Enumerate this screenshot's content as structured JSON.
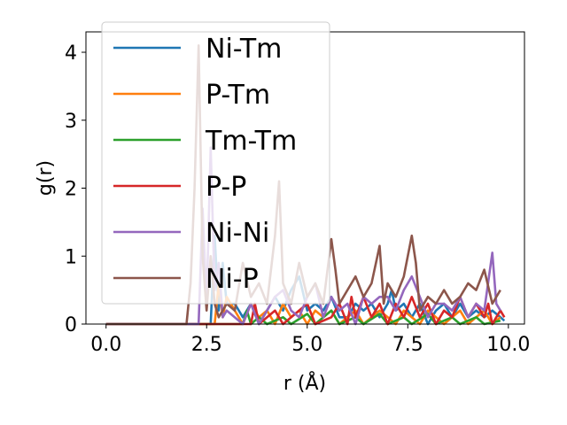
{
  "chart_data": {
    "type": "line",
    "title": "",
    "xlabel": "r (Å)",
    "ylabel": "g(r)",
    "xlim": [
      -0.5,
      10.4
    ],
    "ylim": [
      0,
      4.3
    ],
    "xticks": [
      {
        "value": 0.0,
        "label": "0.0"
      },
      {
        "value": 2.5,
        "label": "2.5"
      },
      {
        "value": 5.0,
        "label": "5.0"
      },
      {
        "value": 7.5,
        "label": "7.5"
      },
      {
        "value": 10.0,
        "label": "10.0"
      }
    ],
    "yticks": [
      {
        "value": 0,
        "label": "0"
      },
      {
        "value": 1,
        "label": "1"
      },
      {
        "value": 2,
        "label": "2"
      },
      {
        "value": 3,
        "label": "3"
      },
      {
        "value": 4,
        "label": "4"
      }
    ],
    "grid": false,
    "legend_position": "upper-left",
    "series": [
      {
        "name": "Ni-Tm",
        "color": "#1f77b4",
        "points": [
          [
            0,
            0
          ],
          [
            2.6,
            0
          ],
          [
            2.7,
            1.3
          ],
          [
            2.8,
            0.2
          ],
          [
            2.9,
            0.9
          ],
          [
            3.0,
            0.3
          ],
          [
            3.2,
            0.3
          ],
          [
            3.4,
            0.1
          ],
          [
            3.6,
            0.3
          ],
          [
            3.8,
            0.0
          ],
          [
            4.0,
            0.2
          ],
          [
            4.2,
            0.4
          ],
          [
            4.4,
            0.2
          ],
          [
            4.6,
            0.5
          ],
          [
            4.8,
            0.7
          ],
          [
            5.0,
            0.2
          ],
          [
            5.2,
            0.3
          ],
          [
            5.4,
            0.2
          ],
          [
            5.6,
            0.4
          ],
          [
            5.8,
            0.1
          ],
          [
            6.0,
            0.1
          ],
          [
            6.2,
            0.3
          ],
          [
            6.4,
            0.2
          ],
          [
            6.6,
            0.3
          ],
          [
            6.8,
            0.1
          ],
          [
            7.0,
            0.3
          ],
          [
            7.1,
            0.5
          ],
          [
            7.2,
            0.2
          ],
          [
            7.4,
            0.3
          ],
          [
            7.6,
            0.1
          ],
          [
            7.8,
            0.3
          ],
          [
            8.0,
            0.0
          ],
          [
            8.2,
            0.2
          ],
          [
            8.4,
            0.3
          ],
          [
            8.6,
            0.1
          ],
          [
            8.8,
            0.3
          ],
          [
            9.0,
            0.1
          ],
          [
            9.2,
            0.2
          ],
          [
            9.4,
            0.1
          ],
          [
            9.6,
            0.2
          ],
          [
            9.8,
            0.1
          ],
          [
            9.9,
            0.05
          ]
        ]
      },
      {
        "name": "P-Tm",
        "color": "#ff7f0e",
        "points": [
          [
            0,
            0
          ],
          [
            2.7,
            0
          ],
          [
            2.8,
            0.6
          ],
          [
            2.9,
            0.1
          ],
          [
            3.0,
            0.4
          ],
          [
            3.2,
            0.2
          ],
          [
            3.4,
            0.0
          ],
          [
            3.6,
            0.3
          ],
          [
            3.8,
            0.1
          ],
          [
            4.0,
            0.2
          ],
          [
            4.2,
            0.0
          ],
          [
            4.4,
            0.3
          ],
          [
            4.6,
            0.1
          ],
          [
            4.8,
            0.2
          ],
          [
            5.0,
            0.0
          ],
          [
            5.2,
            0.2
          ],
          [
            5.4,
            0.1
          ],
          [
            5.6,
            0.2
          ],
          [
            5.8,
            0.0
          ],
          [
            6.0,
            0.1
          ],
          [
            6.2,
            0.2
          ],
          [
            6.4,
            0.0
          ],
          [
            6.6,
            0.1
          ],
          [
            6.8,
            0.2
          ],
          [
            7.0,
            0.1
          ],
          [
            7.2,
            0.0
          ],
          [
            7.4,
            0.2
          ],
          [
            7.6,
            0.1
          ],
          [
            7.8,
            0.0
          ],
          [
            8.0,
            0.2
          ],
          [
            8.2,
            0.1
          ],
          [
            8.4,
            0.0
          ],
          [
            8.6,
            0.1
          ],
          [
            8.8,
            0.2
          ],
          [
            9.0,
            0.0
          ],
          [
            9.2,
            0.1
          ],
          [
            9.4,
            0.2
          ],
          [
            9.6,
            0.0
          ],
          [
            9.8,
            0.1
          ]
        ]
      },
      {
        "name": "Tm-Tm",
        "color": "#2ca02c",
        "points": [
          [
            0,
            0
          ],
          [
            3.4,
            0
          ],
          [
            3.5,
            0.2
          ],
          [
            3.6,
            0.0
          ],
          [
            3.8,
            0.1
          ],
          [
            4.0,
            0.0
          ],
          [
            4.4,
            0.1
          ],
          [
            4.6,
            0.0
          ],
          [
            5.0,
            0.15
          ],
          [
            5.2,
            0.0
          ],
          [
            5.6,
            0.2
          ],
          [
            5.8,
            0.0
          ],
          [
            6.2,
            0.1
          ],
          [
            6.4,
            0.0
          ],
          [
            6.8,
            0.15
          ],
          [
            7.0,
            0.0
          ],
          [
            7.4,
            0.1
          ],
          [
            7.6,
            0.0
          ],
          [
            8.0,
            0.15
          ],
          [
            8.2,
            0.0
          ],
          [
            8.6,
            0.1
          ],
          [
            8.8,
            0.0
          ],
          [
            9.2,
            0.1
          ],
          [
            9.4,
            0.0
          ],
          [
            9.8,
            0.05
          ]
        ]
      },
      {
        "name": "P-P",
        "color": "#d62728",
        "points": [
          [
            0,
            0
          ],
          [
            3.6,
            0
          ],
          [
            3.7,
            0.3
          ],
          [
            3.8,
            0.0
          ],
          [
            4.2,
            0.2
          ],
          [
            4.4,
            0.0
          ],
          [
            5.0,
            0.3
          ],
          [
            5.2,
            0.0
          ],
          [
            5.6,
            0.1
          ],
          [
            5.8,
            0.3
          ],
          [
            6.0,
            0.0
          ],
          [
            6.1,
            0.4
          ],
          [
            6.2,
            0.1
          ],
          [
            6.4,
            0.4
          ],
          [
            6.6,
            0.1
          ],
          [
            6.8,
            0.3
          ],
          [
            7.0,
            0.0
          ],
          [
            7.2,
            0.3
          ],
          [
            7.4,
            0.1
          ],
          [
            7.6,
            0.4
          ],
          [
            7.8,
            0.1
          ],
          [
            8.0,
            0.3
          ],
          [
            8.2,
            0.0
          ],
          [
            8.4,
            0.2
          ],
          [
            8.6,
            0.1
          ],
          [
            8.8,
            0.4
          ],
          [
            9.0,
            0.1
          ],
          [
            9.2,
            0.3
          ],
          [
            9.4,
            0.1
          ],
          [
            9.5,
            0.3
          ],
          [
            9.6,
            0.0
          ],
          [
            9.7,
            0.1
          ],
          [
            9.8,
            0.2
          ],
          [
            9.9,
            0.1
          ]
        ]
      },
      {
        "name": "Ni-Ni",
        "color": "#9467bd",
        "points": [
          [
            0,
            0
          ],
          [
            2.3,
            0
          ],
          [
            2.4,
            1.7
          ],
          [
            2.5,
            0.3
          ],
          [
            2.6,
            2.6
          ],
          [
            2.7,
            0.5
          ],
          [
            2.8,
            0.9
          ],
          [
            2.9,
            0.1
          ],
          [
            3.0,
            0.2
          ],
          [
            3.4,
            0.0
          ],
          [
            3.6,
            0.3
          ],
          [
            3.8,
            0.0
          ],
          [
            4.0,
            0.2
          ],
          [
            4.2,
            0.4
          ],
          [
            4.4,
            0.5
          ],
          [
            4.6,
            0.2
          ],
          [
            4.8,
            0.1
          ],
          [
            5.0,
            0.4
          ],
          [
            5.2,
            0.6
          ],
          [
            5.4,
            0.1
          ],
          [
            5.6,
            0.4
          ],
          [
            5.8,
            0.2
          ],
          [
            6.0,
            0.3
          ],
          [
            6.2,
            0.0
          ],
          [
            6.4,
            0.4
          ],
          [
            6.6,
            0.3
          ],
          [
            6.8,
            0.4
          ],
          [
            7.0,
            0.4
          ],
          [
            7.2,
            0.2
          ],
          [
            7.4,
            0.5
          ],
          [
            7.6,
            0.7
          ],
          [
            7.8,
            0.4
          ],
          [
            8.0,
            0.1
          ],
          [
            8.2,
            0.3
          ],
          [
            8.4,
            0.3
          ],
          [
            8.6,
            0.2
          ],
          [
            8.8,
            0.4
          ],
          [
            9.0,
            0.1
          ],
          [
            9.2,
            0.3
          ],
          [
            9.4,
            0.2
          ],
          [
            9.6,
            1.05
          ],
          [
            9.7,
            0.3
          ],
          [
            9.8,
            0.2
          ]
        ]
      },
      {
        "name": "Ni-P",
        "color": "#8c564b",
        "points": [
          [
            0,
            0
          ],
          [
            2.0,
            0
          ],
          [
            2.1,
            0.6
          ],
          [
            2.2,
            2.0
          ],
          [
            2.3,
            4.1
          ],
          [
            2.4,
            1.0
          ],
          [
            2.5,
            0.2
          ],
          [
            2.6,
            1.0
          ],
          [
            2.7,
            0.3
          ],
          [
            2.8,
            0.1
          ],
          [
            3.0,
            0.3
          ],
          [
            3.2,
            0.2
          ],
          [
            3.4,
            0.9
          ],
          [
            3.6,
            0.4
          ],
          [
            3.8,
            0.6
          ],
          [
            4.0,
            0.3
          ],
          [
            4.2,
            1.3
          ],
          [
            4.3,
            2.1
          ],
          [
            4.4,
            0.6
          ],
          [
            4.6,
            0.3
          ],
          [
            4.8,
            0.9
          ],
          [
            5.0,
            0.4
          ],
          [
            5.2,
            0.6
          ],
          [
            5.4,
            0.3
          ],
          [
            5.6,
            1.25
          ],
          [
            5.7,
            0.8
          ],
          [
            5.8,
            0.3
          ],
          [
            6.0,
            0.5
          ],
          [
            6.2,
            0.7
          ],
          [
            6.4,
            0.4
          ],
          [
            6.6,
            0.6
          ],
          [
            6.8,
            1.15
          ],
          [
            6.9,
            0.3
          ],
          [
            7.0,
            0.6
          ],
          [
            7.2,
            0.4
          ],
          [
            7.4,
            0.7
          ],
          [
            7.6,
            1.3
          ],
          [
            7.7,
            0.9
          ],
          [
            7.8,
            0.2
          ],
          [
            8.0,
            0.4
          ],
          [
            8.2,
            0.3
          ],
          [
            8.4,
            0.5
          ],
          [
            8.6,
            0.3
          ],
          [
            8.8,
            0.4
          ],
          [
            9.0,
            0.6
          ],
          [
            9.2,
            0.5
          ],
          [
            9.4,
            0.8
          ],
          [
            9.6,
            0.3
          ],
          [
            9.8,
            0.5
          ]
        ]
      }
    ]
  }
}
